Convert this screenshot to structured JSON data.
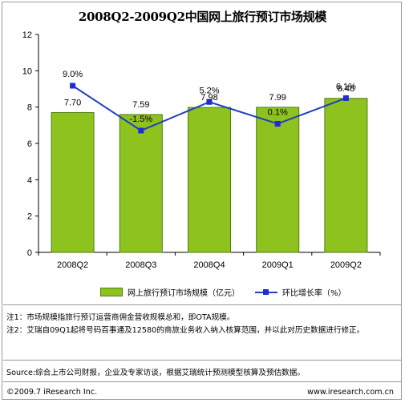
{
  "chart_data": {
    "type": "bar",
    "title": "2008Q2-2009Q2中国网上旅行预订市场规模",
    "categories": [
      "2008Q2",
      "2008Q3",
      "2008Q4",
      "2009Q1",
      "2009Q2"
    ],
    "ylim": [
      0,
      12
    ],
    "yticks": [
      "0",
      "2",
      "4",
      "6",
      "8",
      "10",
      "12"
    ],
    "grid": false,
    "legend_position": "bottom",
    "series": [
      {
        "name": "网上旅行预订市场规模（亿元）",
        "type": "bar",
        "color": "#8dc21f",
        "values": [
          7.7,
          7.59,
          7.98,
          7.99,
          8.48
        ],
        "labels": [
          "7.70",
          "7.59",
          "7.98",
          "7.99",
          "8.48"
        ]
      },
      {
        "name": "环比增长率（%）",
        "type": "line",
        "color": "#1f2ad9",
        "values": [
          9.0,
          -1.5,
          5.2,
          0.1,
          6.1
        ],
        "labels": [
          "9.0%",
          "-1.5%",
          "5.2%",
          "0.1%",
          "6.1%"
        ]
      }
    ]
  },
  "notes": [
    "注1：市场规模指旅行预订运营商佣金营收规模总和，即OTA规模。",
    "注2：艾瑞自09Q1起将号码百事通及12580的商旅业务收入纳入核算范围，并以此对历史数据进行修正。"
  ],
  "source": "Source:综合上市公司财报，企业及专家访谈，根据艾瑞统计预测模型核算及预估数据。",
  "footer": {
    "copyright": "©2009.7 iResearch Inc.",
    "website": "www.iresearch.com.cn"
  }
}
